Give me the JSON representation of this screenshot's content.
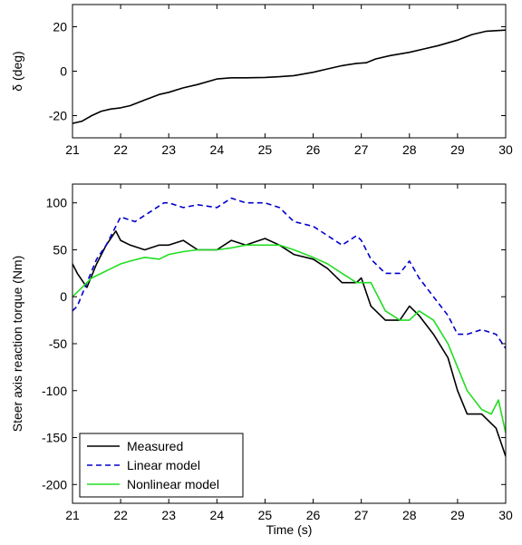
{
  "chart_data": [
    {
      "type": "line",
      "xlabel": "",
      "ylabel": "δ (deg)",
      "xlim": [
        21,
        30
      ],
      "ylim": [
        -30,
        30
      ],
      "grid": false,
      "xticks": [
        21,
        22,
        23,
        24,
        25,
        26,
        27,
        28,
        29,
        30
      ],
      "yticks": [
        -20,
        0,
        20
      ],
      "series": [
        {
          "color": "#000000",
          "style": "solid",
          "x": [
            21,
            21.2,
            21.4,
            21.6,
            21.8,
            22,
            22.2,
            22.5,
            22.8,
            23,
            23.3,
            23.6,
            24,
            24.3,
            24.6,
            25,
            25.3,
            25.6,
            26,
            26.3,
            26.6,
            26.9,
            27.1,
            27.3,
            27.6,
            28,
            28.3,
            28.6,
            29,
            29.3,
            29.6,
            30
          ],
          "y": [
            -23.5,
            -22.5,
            -20,
            -18,
            -17,
            -16.5,
            -15.5,
            -13,
            -10.5,
            -9.5,
            -7.5,
            -6,
            -3.5,
            -3,
            -3,
            -2.8,
            -2.5,
            -2,
            -0.5,
            1,
            2.5,
            3.5,
            3.8,
            5.5,
            7,
            8.5,
            10,
            11.5,
            14,
            16.5,
            18,
            18.5
          ]
        }
      ]
    },
    {
      "type": "line",
      "xlabel": "Time (s)",
      "ylabel": "Steer axis reaction torque (Nm)",
      "xlim": [
        21,
        30
      ],
      "ylim": [
        -220,
        120
      ],
      "grid": false,
      "xticks": [
        21,
        22,
        23,
        24,
        25,
        26,
        27,
        28,
        29,
        30
      ],
      "yticks": [
        -200,
        -150,
        -100,
        -50,
        0,
        50,
        100
      ],
      "legend": "bottom-left",
      "series": [
        {
          "name": "Measured",
          "color": "#000000",
          "style": "solid",
          "x": [
            21,
            21.1,
            21.3,
            21.5,
            21.7,
            21.9,
            22,
            22.2,
            22.5,
            22.8,
            23,
            23.3,
            23.6,
            24,
            24.3,
            24.6,
            25,
            25.3,
            25.6,
            26,
            26.3,
            26.6,
            26.9,
            27,
            27.2,
            27.5,
            27.8,
            28,
            28.2,
            28.5,
            28.8,
            29,
            29.2,
            29.5,
            29.8,
            30
          ],
          "y": [
            35,
            25,
            10,
            35,
            55,
            70,
            60,
            55,
            50,
            55,
            55,
            60,
            50,
            50,
            60,
            55,
            62,
            55,
            45,
            40,
            30,
            15,
            15,
            20,
            -10,
            -25,
            -25,
            -10,
            -20,
            -40,
            -65,
            -100,
            -125,
            -125,
            -140,
            -170
          ]
        },
        {
          "name": "Linear model",
          "color": "#0000cc",
          "style": "dashed",
          "x": [
            21,
            21.1,
            21.3,
            21.5,
            21.7,
            21.9,
            22,
            22.3,
            22.6,
            22.9,
            23,
            23.3,
            23.6,
            24,
            24.3,
            24.6,
            25,
            25.3,
            25.6,
            26,
            26.3,
            26.6,
            26.9,
            27,
            27.2,
            27.5,
            27.8,
            28,
            28.2,
            28.5,
            28.8,
            29,
            29.2,
            29.5,
            29.8,
            30
          ],
          "y": [
            -15,
            -10,
            15,
            40,
            55,
            75,
            85,
            80,
            90,
            100,
            100,
            95,
            98,
            95,
            105,
            100,
            100,
            95,
            80,
            75,
            65,
            55,
            65,
            60,
            40,
            25,
            25,
            38,
            20,
            0,
            -20,
            -40,
            -40,
            -35,
            -40,
            -55
          ]
        },
        {
          "name": "Nonlinear model",
          "color": "#22dd22",
          "style": "solid",
          "x": [
            21,
            21.2,
            21.4,
            21.6,
            21.8,
            22,
            22.2,
            22.5,
            22.8,
            23,
            23.3,
            23.6,
            24,
            24.3,
            24.6,
            25,
            25.3,
            25.6,
            26,
            26.3,
            26.6,
            26.9,
            27,
            27.2,
            27.5,
            27.8,
            28,
            28.2,
            28.5,
            28.8,
            29,
            29.2,
            29.5,
            29.7,
            29.85,
            30
          ],
          "y": [
            0,
            10,
            20,
            25,
            30,
            35,
            38,
            42,
            40,
            45,
            48,
            50,
            50,
            52,
            55,
            55,
            55,
            50,
            42,
            35,
            25,
            15,
            15,
            15,
            -15,
            -25,
            -25,
            -15,
            -25,
            -50,
            -75,
            -100,
            -120,
            -125,
            -110,
            -145
          ]
        }
      ]
    }
  ]
}
